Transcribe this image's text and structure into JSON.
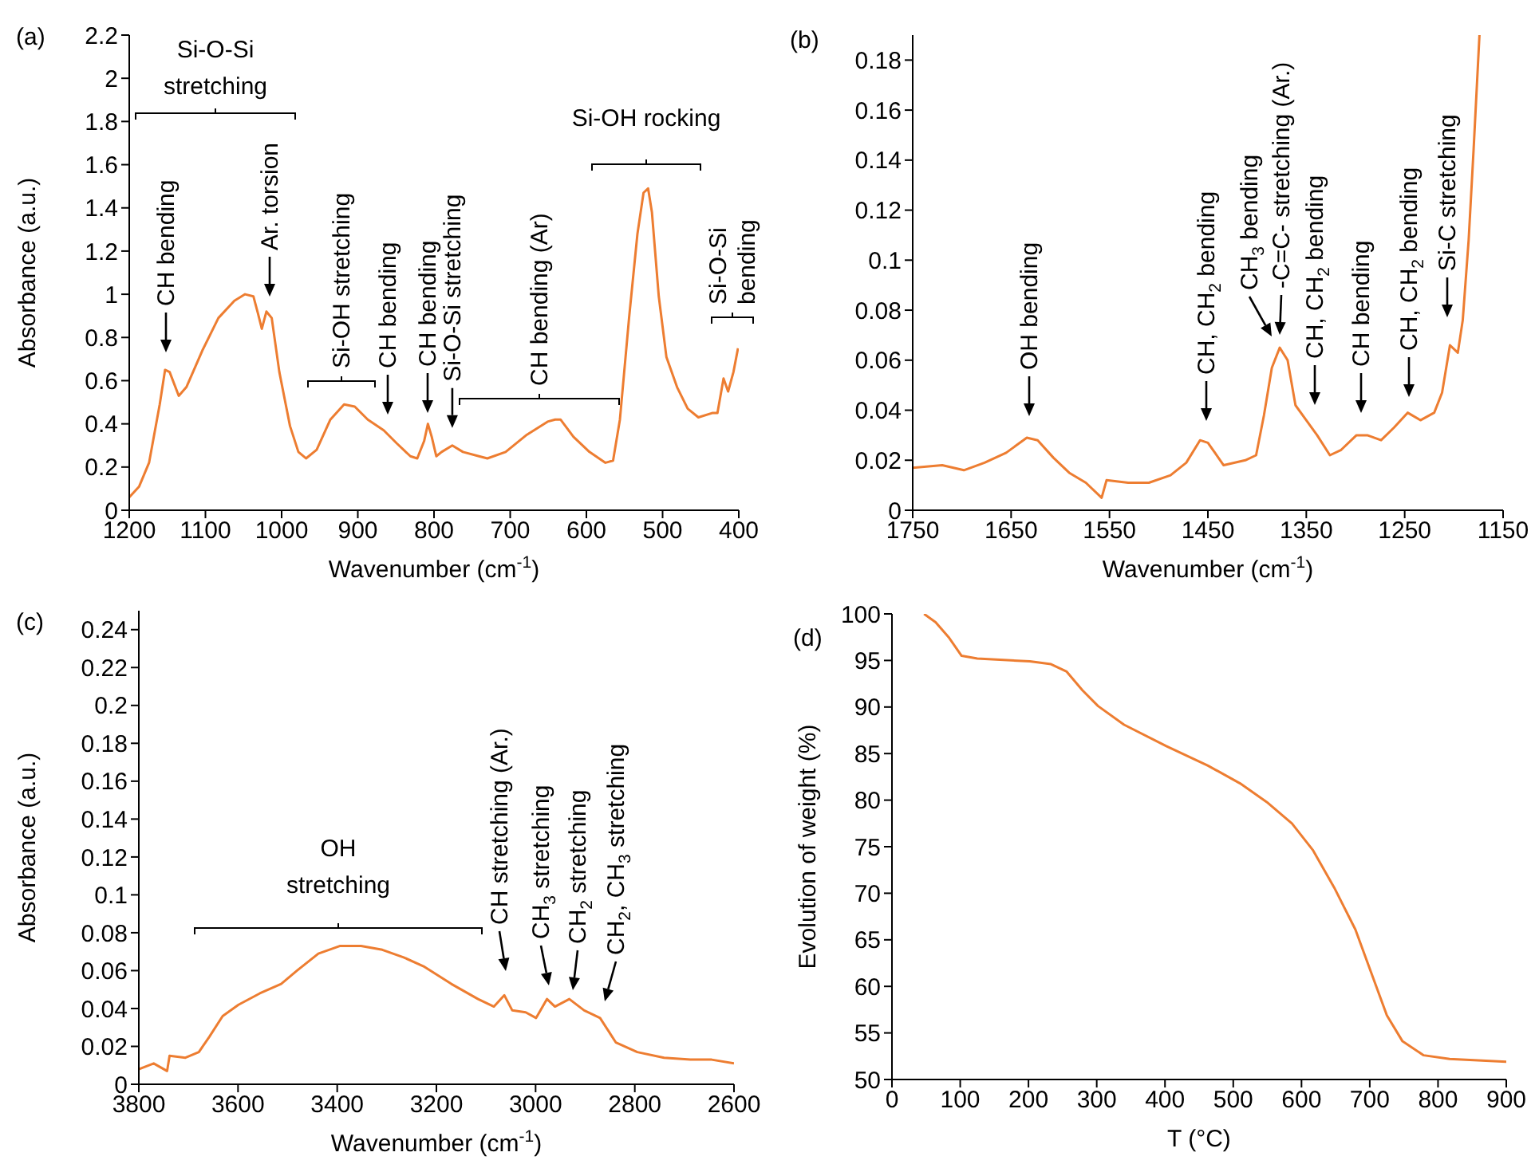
{
  "chart_data": [
    {
      "type": "line",
      "title": "(a)",
      "xlabel": "Wavenumber (cm$^{-1}$)",
      "ylabel": "Absorbance (a.u.)",
      "xlim": [
        1200,
        400
      ],
      "xticks": [
        1200,
        1100,
        1000,
        900,
        800,
        700,
        600,
        500,
        400
      ],
      "ylim": [
        0,
        2.2
      ],
      "yticks": [
        0,
        0.2,
        0.4,
        0.6,
        0.8,
        1,
        1.2,
        1.4,
        1.6,
        1.8,
        2,
        2.2
      ],
      "series": [
        {
          "color": "#ed7d31",
          "x": [
            1200,
            1187,
            1174,
            1160,
            1153,
            1147,
            1135,
            1125,
            1104,
            1083,
            1062,
            1048,
            1037,
            1031,
            1026,
            1020,
            1013,
            1003,
            989,
            978,
            968,
            954,
            936,
            918,
            904,
            887,
            866,
            849,
            831,
            822,
            813,
            808,
            803,
            797,
            790,
            776,
            762,
            741,
            730,
            706,
            678,
            651,
            641,
            634,
            617,
            596,
            575,
            565,
            556,
            544,
            533,
            525,
            519,
            514,
            505,
            495,
            481,
            467,
            453,
            435,
            428,
            420,
            414,
            407,
            401
          ],
          "values": [
            0.06,
            0.11,
            0.22,
            0.49,
            0.65,
            0.64,
            0.53,
            0.57,
            0.74,
            0.89,
            0.97,
            1.0,
            0.99,
            0.91,
            0.84,
            0.92,
            0.89,
            0.64,
            0.39,
            0.27,
            0.24,
            0.28,
            0.42,
            0.49,
            0.48,
            0.42,
            0.37,
            0.31,
            0.25,
            0.24,
            0.32,
            0.4,
            0.34,
            0.25,
            0.27,
            0.3,
            0.27,
            0.25,
            0.24,
            0.27,
            0.35,
            0.41,
            0.42,
            0.42,
            0.34,
            0.27,
            0.22,
            0.23,
            0.42,
            0.89,
            1.28,
            1.47,
            1.49,
            1.38,
            0.99,
            0.71,
            0.57,
            0.47,
            0.43,
            0.45,
            0.45,
            0.61,
            0.55,
            0.64,
            0.75
          ]
        }
      ],
      "annotations": [
        "Si-O-Si stretching",
        "CH bending",
        "Ar. torsion",
        "Si-OH stretching",
        "CH bending",
        "CH bending",
        {
          "text": "Si-O-Si stretching",
          "x": 776,
          "y": 0.3
        },
        "CH bending (Ar)",
        "Si-OH rocking",
        "Si-O-Si bending"
      ]
    },
    {
      "type": "line",
      "title": "(b)",
      "xlabel": "Wavenumber (cm$^{-1}$)",
      "xlim": [
        1750,
        1150
      ],
      "xticks": [
        1750,
        1650,
        1550,
        1450,
        1350,
        1250,
        1150
      ],
      "ylim": [
        0,
        0.19
      ],
      "yticks": [
        0,
        0.02,
        0.04,
        0.06,
        0.08,
        0.1,
        0.12,
        0.14,
        0.16,
        0.18
      ],
      "series": [
        {
          "color": "#ed7d31",
          "x": [
            1750,
            1720,
            1698,
            1677,
            1655,
            1634,
            1623,
            1607,
            1591,
            1574,
            1558,
            1553,
            1531,
            1510,
            1488,
            1472,
            1458,
            1450,
            1434,
            1412,
            1401,
            1393,
            1385,
            1377,
            1369,
            1361,
            1350,
            1339,
            1326,
            1315,
            1299,
            1288,
            1274,
            1261,
            1247,
            1234,
            1220,
            1212,
            1204,
            1196,
            1191,
            1185,
            1180,
            1174
          ],
          "values": [
            0.017,
            0.018,
            0.016,
            0.019,
            0.023,
            0.029,
            0.028,
            0.021,
            0.015,
            0.011,
            0.005,
            0.012,
            0.011,
            0.011,
            0.014,
            0.019,
            0.028,
            0.027,
            0.018,
            0.02,
            0.022,
            0.038,
            0.057,
            0.065,
            0.06,
            0.042,
            0.036,
            0.03,
            0.022,
            0.024,
            0.03,
            0.03,
            0.028,
            0.033,
            0.039,
            0.036,
            0.039,
            0.047,
            0.066,
            0.063,
            0.076,
            0.108,
            0.144,
            0.19
          ]
        }
      ],
      "annotations": [
        "OH bending",
        "CH, CH$_{2}$ bending",
        "CH$_{3}$ bending",
        "-C=C- stretching (Ar.)",
        "CH, CH$_{2}$ bending",
        "CH bending",
        "CH, CH$_{2}$ bending",
        "Si-C stretching"
      ]
    },
    {
      "type": "line",
      "title": "(c)",
      "xlabel": "Wavenumber (cm$^{-1}$)",
      "ylabel": "Absorbance (a.u.)",
      "xlim": [
        3800,
        2600
      ],
      "xticks": [
        3800,
        3600,
        3400,
        3200,
        3000,
        2800,
        2600
      ],
      "ylim": [
        0,
        0.25
      ],
      "yticks": [
        0,
        0.02,
        0.04,
        0.06,
        0.08,
        0.1,
        0.12,
        0.14,
        0.16,
        0.18,
        0.2,
        0.22,
        0.24
      ],
      "series": [
        {
          "color": "#ed7d31",
          "x": [
            3800,
            3770,
            3743,
            3738,
            3706,
            3679,
            3658,
            3631,
            3599,
            3556,
            3513,
            3481,
            3438,
            3395,
            3352,
            3309,
            3266,
            3224,
            3170,
            3116,
            3084,
            3063,
            3047,
            3020,
            2999,
            2977,
            2961,
            2932,
            2902,
            2870,
            2838,
            2795,
            2741,
            2688,
            2645,
            2600
          ],
          "values": [
            0.008,
            0.011,
            0.007,
            0.015,
            0.014,
            0.017,
            0.025,
            0.036,
            0.042,
            0.048,
            0.053,
            0.06,
            0.069,
            0.073,
            0.073,
            0.071,
            0.067,
            0.062,
            0.053,
            0.045,
            0.041,
            0.047,
            0.039,
            0.038,
            0.035,
            0.045,
            0.041,
            0.045,
            0.039,
            0.035,
            0.022,
            0.017,
            0.014,
            0.013,
            0.013,
            0.011
          ]
        }
      ],
      "annotations": [
        "OH stretching",
        "CH stretching (Ar.)",
        "CH$_{3}$ stretching",
        "CH$_{2}$ stretching",
        "CH$_{2}$, CH$_{3}$ stretching"
      ]
    },
    {
      "type": "line",
      "title": "(d)",
      "xlabel": "T (°C)",
      "ylabel": "Evolution of weight (%)",
      "xlim": [
        0,
        900
      ],
      "xticks": [
        0,
        100,
        200,
        300,
        400,
        500,
        600,
        700,
        800,
        900
      ],
      "ylim": [
        50,
        100
      ],
      "yticks": [
        50,
        55,
        60,
        65,
        70,
        75,
        80,
        85,
        90,
        95,
        100
      ],
      "series": [
        {
          "color": "#ed7d31",
          "x": [
            47,
            64,
            83,
            102,
            125,
            202,
            233,
            256,
            279,
            302,
            340,
            402,
            463,
            510,
            549,
            586,
            617,
            648,
            679,
            702,
            725,
            748,
            779,
            817,
            900
          ],
          "values": [
            100,
            99.1,
            97.5,
            95.5,
            95.2,
            94.9,
            94.6,
            93.8,
            91.8,
            90.1,
            88.1,
            85.8,
            83.7,
            81.8,
            79.8,
            77.5,
            74.6,
            70.6,
            66.1,
            61.5,
            56.9,
            54.1,
            52.6,
            52.2,
            51.9
          ]
        }
      ]
    }
  ]
}
